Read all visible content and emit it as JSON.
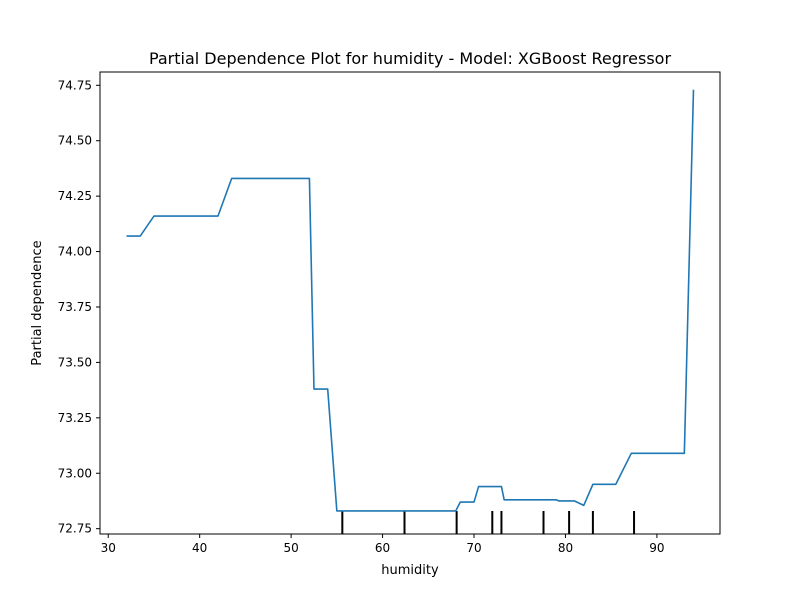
{
  "chart_data": {
    "type": "line",
    "title": "Partial Dependence Plot for humidity - Model: XGBoost Regressor",
    "xlabel": "humidity",
    "ylabel": "Partial dependence",
    "xlim": [
      29.1,
      96.9
    ],
    "ylim": [
      72.726,
      74.81
    ],
    "x_ticks": [
      30,
      40,
      50,
      60,
      70,
      80,
      90
    ],
    "y_ticks": [
      72.75,
      73.0,
      73.25,
      73.5,
      73.75,
      74.0,
      74.25,
      74.5,
      74.75
    ],
    "y_tick_labels": [
      "72.75",
      "73.00",
      "73.25",
      "73.50",
      "73.75",
      "74.00",
      "74.25",
      "74.50",
      "74.75"
    ],
    "grid": false,
    "series": [
      {
        "color": "#1f77b4",
        "x": [
          32.0,
          33.5,
          35.0,
          42.0,
          43.5,
          52.0,
          52.5,
          54.0,
          55.0,
          68.0,
          68.5,
          70.0,
          70.5,
          73.0,
          73.3,
          79.0,
          79.3,
          81.0,
          82.0,
          83.0,
          85.5,
          87.2,
          93.0,
          94.0
        ],
        "y": [
          74.07,
          74.07,
          74.16,
          74.16,
          74.33,
          74.33,
          73.38,
          73.38,
          72.83,
          72.83,
          72.87,
          72.87,
          72.94,
          72.94,
          72.88,
          72.88,
          72.875,
          72.875,
          72.855,
          72.95,
          72.95,
          73.09,
          73.09,
          74.73
        ]
      }
    ],
    "rug": {
      "color": "#000000",
      "x": [
        55.6,
        62.4,
        68.1,
        72.0,
        73.0,
        77.6,
        80.4,
        83.0,
        87.5
      ]
    }
  }
}
